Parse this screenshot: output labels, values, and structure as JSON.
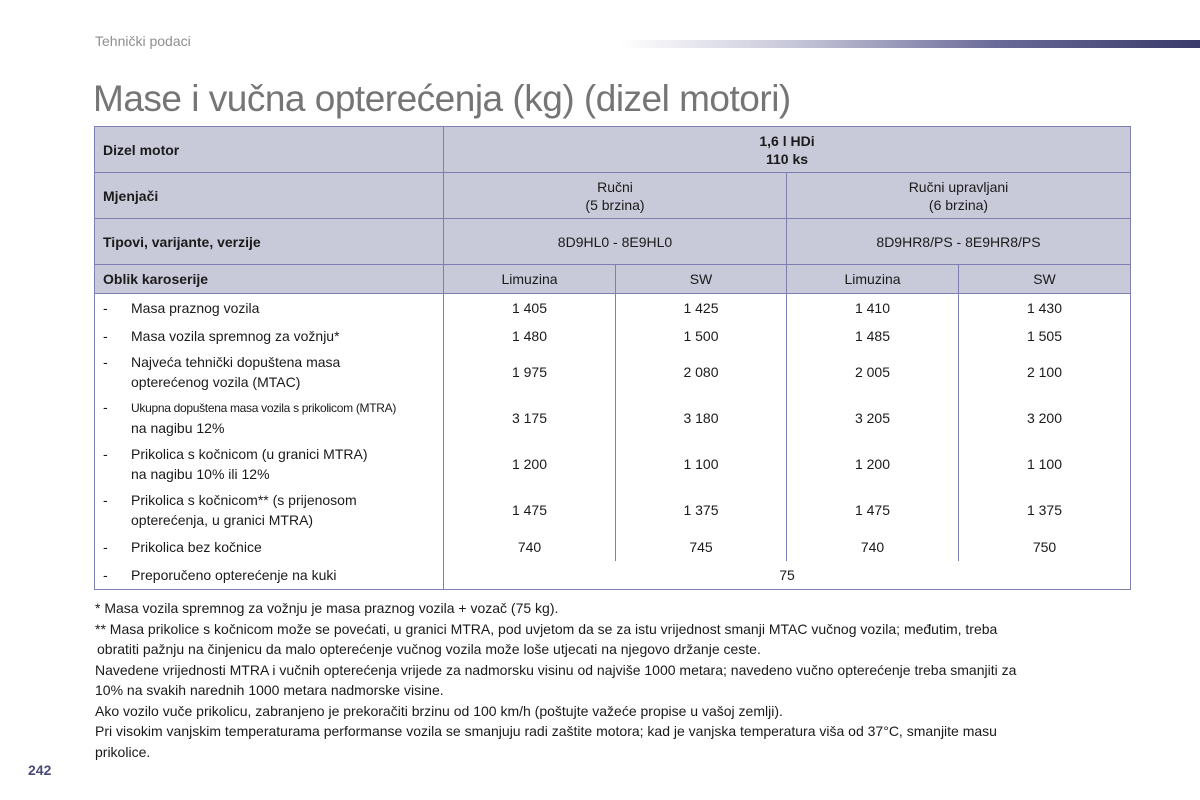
{
  "header": {
    "section": "Tehnički podaci",
    "title": "Mase i vučna opterećenja (kg) (dizel motori)"
  },
  "table": {
    "engine_label": "Dizel motor",
    "engine_value_1": "1,6 l HDi",
    "engine_value_2": "110 ks",
    "gearbox_label": "Mjenjači",
    "gearbox": [
      {
        "line1": "Ručni",
        "line2": "(5 brzina)"
      },
      {
        "line1": "Ručni upravljani",
        "line2": "(6 brzina)"
      }
    ],
    "types_label": "Tipovi, varijante, verzije",
    "types": [
      "8D9HL0 - 8E9HL0",
      "8D9HR8/PS - 8E9HR8/PS"
    ],
    "body_label": "Oblik karoserije",
    "bodies": [
      "Limuzina",
      "SW",
      "Limuzina",
      "SW"
    ],
    "rows": [
      {
        "dash": "-",
        "line1": "Masa praznog vozila",
        "line2": "",
        "values": [
          "1 405",
          "1 425",
          "1 410",
          "1 430"
        ]
      },
      {
        "dash": "-",
        "line1": "Masa vozila spremnog za vožnju*",
        "line2": "",
        "values": [
          "1 480",
          "1 500",
          "1 485",
          "1 505"
        ]
      },
      {
        "dash": "-",
        "line1": "Najveća tehnički dopuštena masa",
        "line2": "opterećenog vozila (MTAC)",
        "values": [
          "1 975",
          "2 080",
          "2 005",
          "2 100"
        ]
      },
      {
        "dash": "-",
        "line1": "Ukupna dopuštena masa vozila s prikolicom (MTRA)",
        "line2": "na nagibu 12%",
        "values": [
          "3 175",
          "3 180",
          "3 205",
          "3 200"
        ]
      },
      {
        "dash": "-",
        "line1": "Prikolica s kočnicom (u granici MTRA)",
        "line2": "na nagibu 10% ili 12%",
        "values": [
          "1 200",
          "1 100",
          "1 200",
          "1 100"
        ]
      },
      {
        "dash": "-",
        "line1": "Prikolica s kočnicom** (s prijenosom",
        "line2": "opterećenja, u granici MTRA)",
        "values": [
          "1 475",
          "1 375",
          "1 475",
          "1 375"
        ]
      },
      {
        "dash": "-",
        "line1": "Prikolica bez kočnice",
        "line2": "",
        "values": [
          "740",
          "745",
          "740",
          "750"
        ]
      }
    ],
    "last_row": {
      "dash": "-",
      "label": "Preporučeno opterećenje na kuki",
      "value": "75"
    }
  },
  "notes": [
    "* Masa vozila spremnog za vožnju je masa praznog vozila + vozač (75 kg).",
    "** Masa prikolice s kočnicom može se povećati, u granici MTRA, pod uvjetom da se za istu vrijednost smanji MTAC vučnog vozila; međutim, treba",
    "obratiti pažnju na činjenicu da malo opterećenje vučnog vozila može loše utjecati na njegovo držanje ceste.",
    "Navedene vrijednosti MTRA i vučnih opterećenja vrijede za nadmorsku visinu od najviše 1000 metara; navedeno vučno opterećenje treba smanjiti za",
    "10% na svakih narednih 1000 metara nadmorske visine.",
    "Ako vozilo vuče prikolicu, zabranjeno je prekoračiti brzinu od 100 km/h (poštujte važeće propise u vašoj zemlji).",
    "Pri visokim vanjskim temperaturama performanse vozila se smanjuju radi zaštite motora; kad je vanjska temperatura viša od 37°C, smanjite masu",
    "prikolice."
  ],
  "page_number": "242",
  "colors": {
    "header_fill": "#c9cad9",
    "border": "#7d7fb0",
    "title": "#757575",
    "section": "#8e8e8e",
    "page_number": "#4a4a7a"
  }
}
